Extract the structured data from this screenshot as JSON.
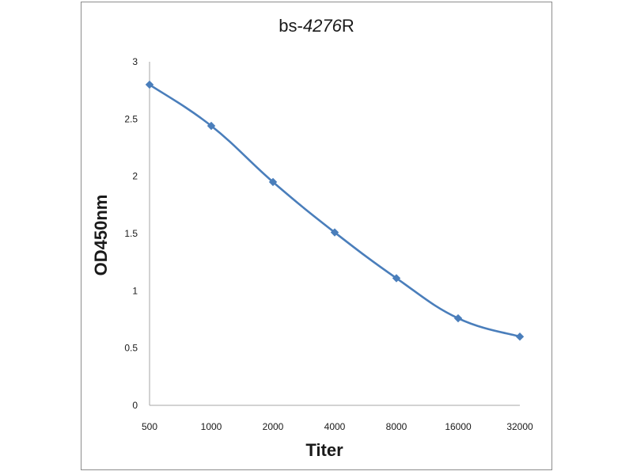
{
  "chart_data": {
    "type": "line",
    "title_prefix": "bs-",
    "title_number": "4276",
    "title_suffix": "R",
    "xlabel": "Titer",
    "ylabel": "OD450nm",
    "categories": [
      "500",
      "1000",
      "2000",
      "4000",
      "8000",
      "16000",
      "32000"
    ],
    "series": [
      {
        "values": [
          2.8,
          2.44,
          1.95,
          1.51,
          1.11,
          0.76,
          0.6
        ],
        "color": "#4a7ebb"
      }
    ],
    "ylim": [
      0,
      3
    ],
    "yticks": [
      "0",
      "0.5",
      "1",
      "1.5",
      "2",
      "2.5",
      "3"
    ],
    "grid": false,
    "legend": "none",
    "axis_color": "#a6a6a6"
  }
}
